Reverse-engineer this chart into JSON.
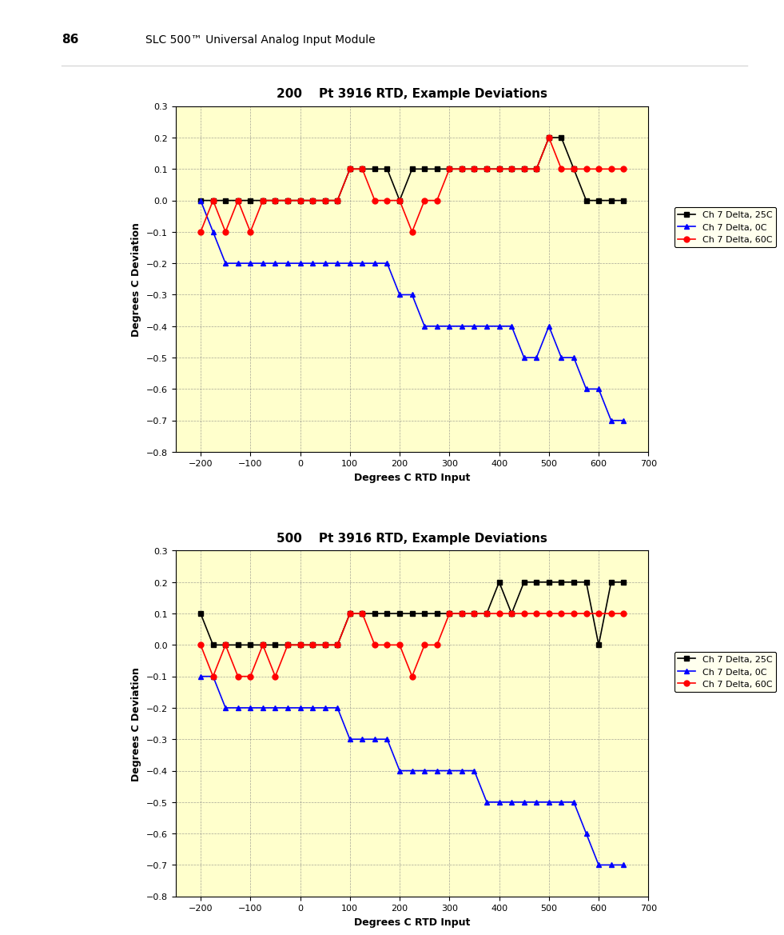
{
  "page_number": "86",
  "page_title": "SLC 500™ Universal Analog Input Module",
  "chart1": {
    "title": "200    Pt 3916 RTD, Example Deviations",
    "xlabel": "Degrees C RTD Input",
    "ylabel": "Degrees C Deviation",
    "xlim": [
      -250,
      700
    ],
    "ylim": [
      -0.8,
      0.3
    ],
    "xticks": [
      -200,
      -100,
      0,
      100,
      200,
      300,
      400,
      500,
      600,
      700
    ],
    "yticks": [
      -0.8,
      -0.7,
      -0.6,
      -0.5,
      -0.4,
      -0.3,
      -0.2,
      -0.1,
      0.0,
      0.1,
      0.2,
      0.3
    ],
    "bg_color": "#FFFFCC",
    "series": {
      "black": {
        "label": "Ch 7 Delta, 25C",
        "color": "#000000",
        "marker": "s",
        "x": [
          -200,
          -175,
          -150,
          -125,
          -100,
          -75,
          -50,
          -25,
          0,
          25,
          50,
          75,
          100,
          125,
          150,
          175,
          200,
          225,
          250,
          275,
          300,
          325,
          350,
          375,
          400,
          425,
          450,
          475,
          500,
          525,
          550,
          575,
          600,
          625,
          650
        ],
        "y": [
          0.0,
          0.0,
          0.0,
          0.0,
          0.0,
          0.0,
          0.0,
          0.0,
          0.0,
          0.0,
          0.0,
          0.0,
          0.1,
          0.1,
          0.1,
          0.1,
          0.0,
          0.1,
          0.1,
          0.1,
          0.1,
          0.1,
          0.1,
          0.1,
          0.1,
          0.1,
          0.1,
          0.1,
          0.2,
          0.2,
          0.1,
          0.0,
          0.0,
          0.0,
          0.0
        ]
      },
      "blue": {
        "label": "Ch 7 Delta, 0C",
        "color": "#0000FF",
        "marker": "^",
        "x": [
          -200,
          -175,
          -150,
          -125,
          -100,
          -75,
          -50,
          -25,
          0,
          25,
          50,
          75,
          100,
          125,
          150,
          175,
          200,
          225,
          250,
          275,
          300,
          325,
          350,
          375,
          400,
          425,
          450,
          475,
          500,
          525,
          550,
          575,
          600,
          625,
          650
        ],
        "y": [
          0.0,
          -0.1,
          -0.2,
          -0.2,
          -0.2,
          -0.2,
          -0.2,
          -0.2,
          -0.2,
          -0.2,
          -0.2,
          -0.2,
          -0.2,
          -0.2,
          -0.2,
          -0.2,
          -0.3,
          -0.3,
          -0.4,
          -0.4,
          -0.4,
          -0.4,
          -0.4,
          -0.4,
          -0.4,
          -0.4,
          -0.5,
          -0.5,
          -0.4,
          -0.5,
          -0.5,
          -0.6,
          -0.6,
          -0.7,
          -0.7
        ]
      },
      "red": {
        "label": "Ch 7 Delta, 60C",
        "color": "#FF0000",
        "marker": "o",
        "x": [
          -200,
          -175,
          -150,
          -125,
          -100,
          -75,
          -50,
          -25,
          0,
          25,
          50,
          75,
          100,
          125,
          150,
          175,
          200,
          225,
          250,
          275,
          300,
          325,
          350,
          375,
          400,
          425,
          450,
          475,
          500,
          525,
          550,
          575,
          600,
          625,
          650
        ],
        "y": [
          -0.1,
          0.0,
          -0.1,
          0.0,
          -0.1,
          0.0,
          0.0,
          0.0,
          0.0,
          0.0,
          0.0,
          0.0,
          0.1,
          0.1,
          0.0,
          0.0,
          0.0,
          -0.1,
          0.0,
          0.0,
          0.1,
          0.1,
          0.1,
          0.1,
          0.1,
          0.1,
          0.1,
          0.1,
          0.2,
          0.1,
          0.1,
          0.1,
          0.1,
          0.1,
          0.1
        ]
      }
    }
  },
  "chart2": {
    "title": "500    Pt 3916 RTD, Example Deviations",
    "xlabel": "Degrees C RTD Input",
    "ylabel": "Degrees C Deviation",
    "xlim": [
      -250,
      700
    ],
    "ylim": [
      -0.8,
      0.3
    ],
    "xticks": [
      -200,
      -100,
      0,
      100,
      200,
      300,
      400,
      500,
      600,
      700
    ],
    "yticks": [
      -0.8,
      -0.7,
      -0.6,
      -0.5,
      -0.4,
      -0.3,
      -0.2,
      -0.1,
      0.0,
      0.1,
      0.2,
      0.3
    ],
    "bg_color": "#FFFFCC",
    "series": {
      "black": {
        "label": "Ch 7 Delta, 25C",
        "color": "#000000",
        "marker": "s",
        "x": [
          -200,
          -175,
          -150,
          -125,
          -100,
          -75,
          -50,
          -25,
          0,
          25,
          50,
          75,
          100,
          125,
          150,
          175,
          200,
          225,
          250,
          275,
          300,
          325,
          350,
          375,
          400,
          425,
          450,
          475,
          500,
          525,
          550,
          575,
          600,
          625,
          650
        ],
        "y": [
          0.1,
          0.0,
          0.0,
          0.0,
          0.0,
          0.0,
          0.0,
          0.0,
          0.0,
          0.0,
          0.0,
          0.0,
          0.1,
          0.1,
          0.1,
          0.1,
          0.1,
          0.1,
          0.1,
          0.1,
          0.1,
          0.1,
          0.1,
          0.1,
          0.2,
          0.1,
          0.2,
          0.2,
          0.2,
          0.2,
          0.2,
          0.2,
          0.0,
          0.2,
          0.2
        ]
      },
      "blue": {
        "label": "Ch 7 Delta, 0C",
        "color": "#0000FF",
        "marker": "^",
        "x": [
          -200,
          -175,
          -150,
          -125,
          -100,
          -75,
          -50,
          -25,
          0,
          25,
          50,
          75,
          100,
          125,
          150,
          175,
          200,
          225,
          250,
          275,
          300,
          325,
          350,
          375,
          400,
          425,
          450,
          475,
          500,
          525,
          550,
          575,
          600,
          625,
          650
        ],
        "y": [
          -0.1,
          -0.1,
          -0.2,
          -0.2,
          -0.2,
          -0.2,
          -0.2,
          -0.2,
          -0.2,
          -0.2,
          -0.2,
          -0.2,
          -0.3,
          -0.3,
          -0.3,
          -0.3,
          -0.4,
          -0.4,
          -0.4,
          -0.4,
          -0.4,
          -0.4,
          -0.4,
          -0.5,
          -0.5,
          -0.5,
          -0.5,
          -0.5,
          -0.5,
          -0.5,
          -0.5,
          -0.6,
          -0.7,
          -0.7,
          -0.7
        ]
      },
      "red": {
        "label": "Ch 7 Delta, 60C",
        "color": "#FF0000",
        "marker": "o",
        "x": [
          -200,
          -175,
          -150,
          -125,
          -100,
          -75,
          -50,
          -25,
          0,
          25,
          50,
          75,
          100,
          125,
          150,
          175,
          200,
          225,
          250,
          275,
          300,
          325,
          350,
          375,
          400,
          425,
          450,
          475,
          500,
          525,
          550,
          575,
          600,
          625,
          650
        ],
        "y": [
          0.0,
          -0.1,
          0.0,
          -0.1,
          -0.1,
          0.0,
          -0.1,
          0.0,
          0.0,
          0.0,
          0.0,
          0.0,
          0.1,
          0.1,
          0.0,
          0.0,
          0.0,
          -0.1,
          0.0,
          0.0,
          0.1,
          0.1,
          0.1,
          0.1,
          0.1,
          0.1,
          0.1,
          0.1,
          0.1,
          0.1,
          0.1,
          0.1,
          0.1,
          0.1,
          0.1
        ]
      }
    }
  }
}
